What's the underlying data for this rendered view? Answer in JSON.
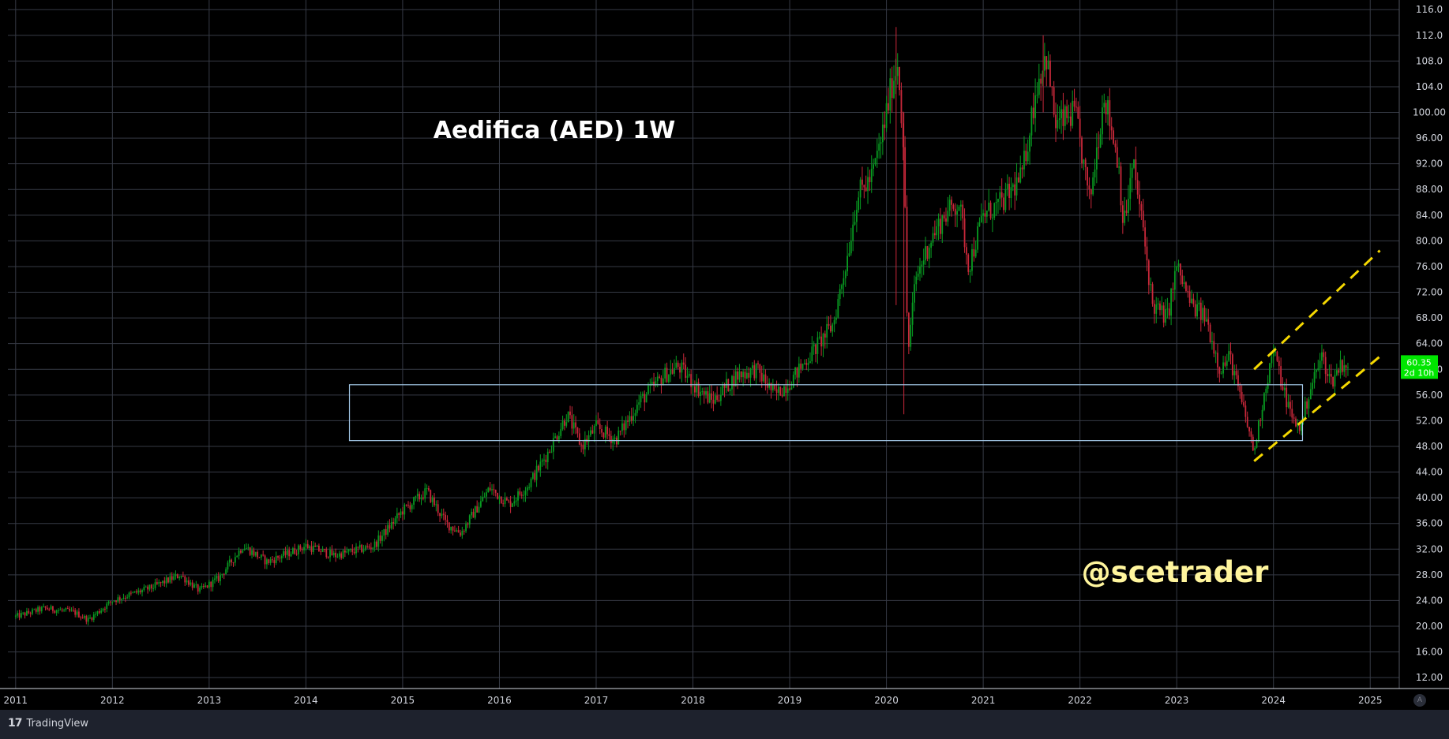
{
  "chart_data": {
    "type": "candlestick",
    "title": "Aedifica (AED) 1W",
    "watermark_text": "@scetrader",
    "y_axis": {
      "ticks": [
        "116.0",
        "112.0",
        "108.0",
        "104.0",
        "100.00",
        "96.00",
        "92.00",
        "88.00",
        "84.00",
        "80.00",
        "76.00",
        "72.00",
        "68.00",
        "64.00",
        "60.00",
        "56.00",
        "52.00",
        "48.00",
        "44.00",
        "40.00",
        "36.00",
        "32.00",
        "28.00",
        "24.00",
        "20.00",
        "16.00",
        "12.00"
      ],
      "range": [
        10.3,
        117.5
      ],
      "position": "right"
    },
    "x_axis": {
      "ticks": [
        "2011",
        "2012",
        "2013",
        "2014",
        "2015",
        "2016",
        "2017",
        "2018",
        "2019",
        "2020",
        "2021",
        "2022",
        "2023",
        "2024",
        "2025"
      ],
      "range": [
        2010.92,
        2025.3
      ]
    },
    "grid": true,
    "last_price": {
      "value": "60.35",
      "countdown": "2d 10h",
      "color": "#00e600"
    },
    "price_path": [
      [
        2011.0,
        21.5
      ],
      [
        2011.3,
        22.8
      ],
      [
        2011.6,
        22.2
      ],
      [
        2011.75,
        21.0
      ],
      [
        2012.0,
        24.0
      ],
      [
        2012.4,
        26.0
      ],
      [
        2012.7,
        28.0
      ],
      [
        2012.9,
        25.5
      ],
      [
        2013.1,
        27.5
      ],
      [
        2013.35,
        32.5
      ],
      [
        2013.6,
        30.0
      ],
      [
        2014.0,
        32.5
      ],
      [
        2014.3,
        31.0
      ],
      [
        2014.7,
        32.5
      ],
      [
        2015.0,
        38.0
      ],
      [
        2015.25,
        41.0
      ],
      [
        2015.45,
        36.0
      ],
      [
        2015.6,
        34.5
      ],
      [
        2015.75,
        38.0
      ],
      [
        2015.9,
        41.5
      ],
      [
        2016.1,
        39.0
      ],
      [
        2016.3,
        42.0
      ],
      [
        2016.5,
        47.0
      ],
      [
        2016.7,
        53.0
      ],
      [
        2016.85,
        48.0
      ],
      [
        2017.0,
        51.0
      ],
      [
        2017.2,
        49.0
      ],
      [
        2017.45,
        55.0
      ],
      [
        2017.7,
        59.0
      ],
      [
        2017.85,
        60.5
      ],
      [
        2018.05,
        57.0
      ],
      [
        2018.2,
        55.0
      ],
      [
        2018.45,
        59.0
      ],
      [
        2018.65,
        60.0
      ],
      [
        2018.85,
        56.0
      ],
      [
        2019.0,
        58.0
      ],
      [
        2019.2,
        62.0
      ],
      [
        2019.45,
        67.0
      ],
      [
        2019.6,
        78.0
      ],
      [
        2019.7,
        87.0
      ],
      [
        2019.85,
        90.0
      ],
      [
        2019.95,
        96.0
      ],
      [
        2020.05,
        104.0
      ],
      [
        2020.12,
        108.0
      ],
      [
        2020.18,
        94.0
      ],
      [
        2020.22,
        62.0
      ],
      [
        2020.3,
        74.0
      ],
      [
        2020.45,
        80.0
      ],
      [
        2020.6,
        84.0
      ],
      [
        2020.75,
        86.0
      ],
      [
        2020.85,
        76.0
      ],
      [
        2021.0,
        84.0
      ],
      [
        2021.2,
        86.0
      ],
      [
        2021.4,
        90.0
      ],
      [
        2021.55,
        104.0
      ],
      [
        2021.65,
        109.0
      ],
      [
        2021.75,
        98.0
      ],
      [
        2021.95,
        100.0
      ],
      [
        2022.1,
        86.0
      ],
      [
        2022.25,
        103.0
      ],
      [
        2022.4,
        92.0
      ],
      [
        2022.45,
        82.0
      ],
      [
        2022.55,
        92.0
      ],
      [
        2022.65,
        82.0
      ],
      [
        2022.75,
        70.0
      ],
      [
        2022.9,
        68.0
      ],
      [
        2023.0,
        76.0
      ],
      [
        2023.15,
        70.0
      ],
      [
        2023.3,
        68.0
      ],
      [
        2023.45,
        60.0
      ],
      [
        2023.55,
        62.0
      ],
      [
        2023.65,
        56.0
      ],
      [
        2023.72,
        52.0
      ],
      [
        2023.8,
        47.0
      ],
      [
        2023.9,
        56.0
      ],
      [
        2024.0,
        63.0
      ],
      [
        2024.1,
        57.0
      ],
      [
        2024.2,
        52.0
      ],
      [
        2024.28,
        51.0
      ],
      [
        2024.38,
        57.0
      ],
      [
        2024.5,
        62.0
      ],
      [
        2024.6,
        58.0
      ],
      [
        2024.7,
        61.0
      ],
      [
        2024.78,
        60.35
      ]
    ],
    "zone_box": {
      "x1": 2014.45,
      "x2": 2024.3,
      "y_top": 57.6,
      "y_bottom": 48.9,
      "color": "#a3c8e8"
    },
    "trend_lines": [
      {
        "x1": 2023.8,
        "y1": 60.0,
        "x2": 2025.1,
        "y2": 78.5,
        "color": "#f5d800",
        "style": "dashed"
      },
      {
        "x1": 2023.8,
        "y1": 45.7,
        "x2": 2025.1,
        "y2": 62.0,
        "color": "#f5d800",
        "style": "dashed"
      }
    ],
    "colors": {
      "up": "#089b21",
      "down": "#c8283a",
      "grid": "#363a45",
      "background": "#000000",
      "axis_text": "#d1d4dc"
    }
  },
  "footer": {
    "brand": "TradingView",
    "auto_scale_label": "A"
  }
}
